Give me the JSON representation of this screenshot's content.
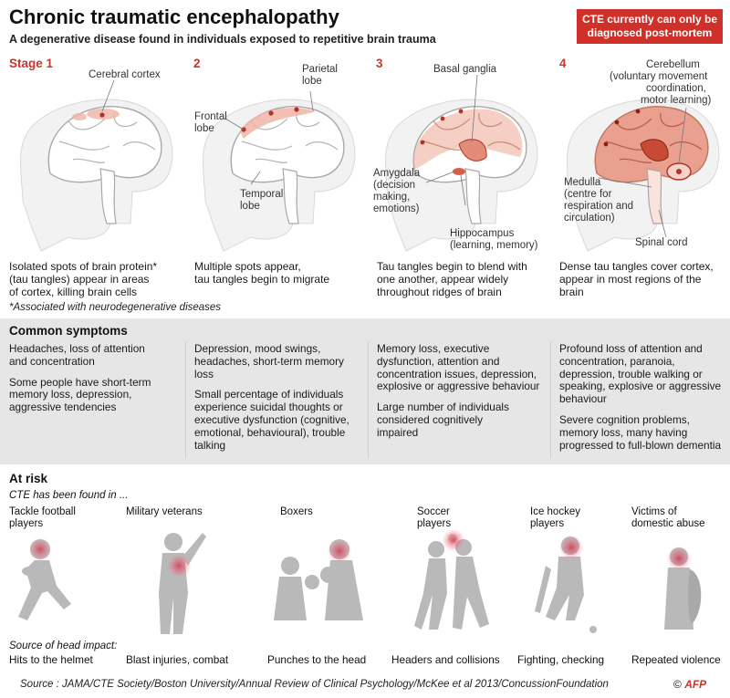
{
  "header": {
    "title": "Chronic traumatic encephalopathy",
    "subtitle": "A degenerative disease found in individuals exposed to repetitive brain trauma",
    "badge_line1": "CTE currently can only be",
    "badge_line2": "diagnosed post-mortem"
  },
  "stages": [
    {
      "label": "Stage 1",
      "brain_labels": [
        "Cerebral cortex"
      ],
      "desc": [
        "Isolated spots of brain protein*",
        "(tau tangles) appear in areas",
        "of cortex, killing brain cells"
      ]
    },
    {
      "label": "2",
      "brain_labels": [
        "Frontal",
        "lobe",
        "Parietal",
        "lobe",
        "Temporal",
        "lobe"
      ],
      "desc": [
        "Multiple spots appear,",
        "tau tangles begin to migrate"
      ]
    },
    {
      "label": "3",
      "brain_labels": [
        "Basal ganglia",
        "Amygdala",
        "(decision",
        "making,",
        "emotions)",
        "Hippocampus",
        "(learning, memory)"
      ],
      "desc": [
        "Tau tangles begin to blend with",
        "one another, appear widely",
        "throughout ridges of brain"
      ]
    },
    {
      "label": "4",
      "brain_labels": [
        "Cerebellum",
        "(voluntary movement",
        "coordination,",
        "motor learning)",
        "Medulla",
        "(centre for",
        "respiration and",
        "circulation)",
        "Spinal cord"
      ],
      "desc": [
        "Dense tau tangles cover cortex,",
        "appear in most regions of the",
        "brain"
      ]
    }
  ],
  "footnote": "*Associated with neurodegenerative diseases",
  "symptoms": {
    "title": "Common symptoms",
    "columns": [
      {
        "p1": [
          "Headaches, loss of attention",
          "and concentration"
        ],
        "p2": [
          "Some people have short-term",
          "memory loss, depression,",
          "aggressive tendencies"
        ]
      },
      {
        "p1": [
          "Depression, mood swings,",
          "headaches, short-term memory",
          "loss"
        ],
        "p2": [
          "Small percentage of individuals",
          "experience suicidal thoughts or",
          "executive dysfunction (cognitive,",
          "emotional, behavioural), trouble",
          "talking"
        ]
      },
      {
        "p1": [
          "Memory loss, executive",
          "dysfunction, attention and",
          "concentration issues, depression,",
          "explosive or aggressive behaviour"
        ],
        "p2": [
          "Large number of individuals",
          "considered cognitively",
          "impaired"
        ]
      },
      {
        "p1": [
          "Profound loss of attention and",
          "concentration, paranoia,",
          "depression, trouble walking or",
          "speaking, explosive or aggressive",
          "behaviour"
        ],
        "p2": [
          "Severe cognition problems,",
          "memory loss, many having",
          "progressed to full-blown dementia"
        ]
      }
    ]
  },
  "at_risk": {
    "title": "At risk",
    "subtitle": "CTE has been found in ...",
    "source_heading": "Source of head impact:",
    "groups": [
      {
        "label": [
          "Tackle football",
          "players"
        ],
        "source": "Hits to the helmet"
      },
      {
        "label": [
          "Military veterans"
        ],
        "source": "Blast injuries, combat"
      },
      {
        "label": [
          "Boxers"
        ],
        "source": "Punches to the head"
      },
      {
        "label": [
          "Soccer",
          "players"
        ],
        "source": "Headers and collisions"
      },
      {
        "label": [
          "Ice hockey",
          "players"
        ],
        "source": "Fighting, checking"
      },
      {
        "label": [
          "Victims of",
          "domestic abuse"
        ],
        "source": "Repeated violence"
      }
    ]
  },
  "footer": {
    "source": "Source : JAMA/CTE Society/Boston University/Annual Review of Clinical Psychology/McKee et al 2013/ConcussionFoundation",
    "copyright": "©",
    "agency": "AFP"
  },
  "colors": {
    "accent": "#c9342c",
    "tau": "#e8a493",
    "tau_dark": "#b0332a",
    "symptom_bg": "#e6e6e6"
  }
}
